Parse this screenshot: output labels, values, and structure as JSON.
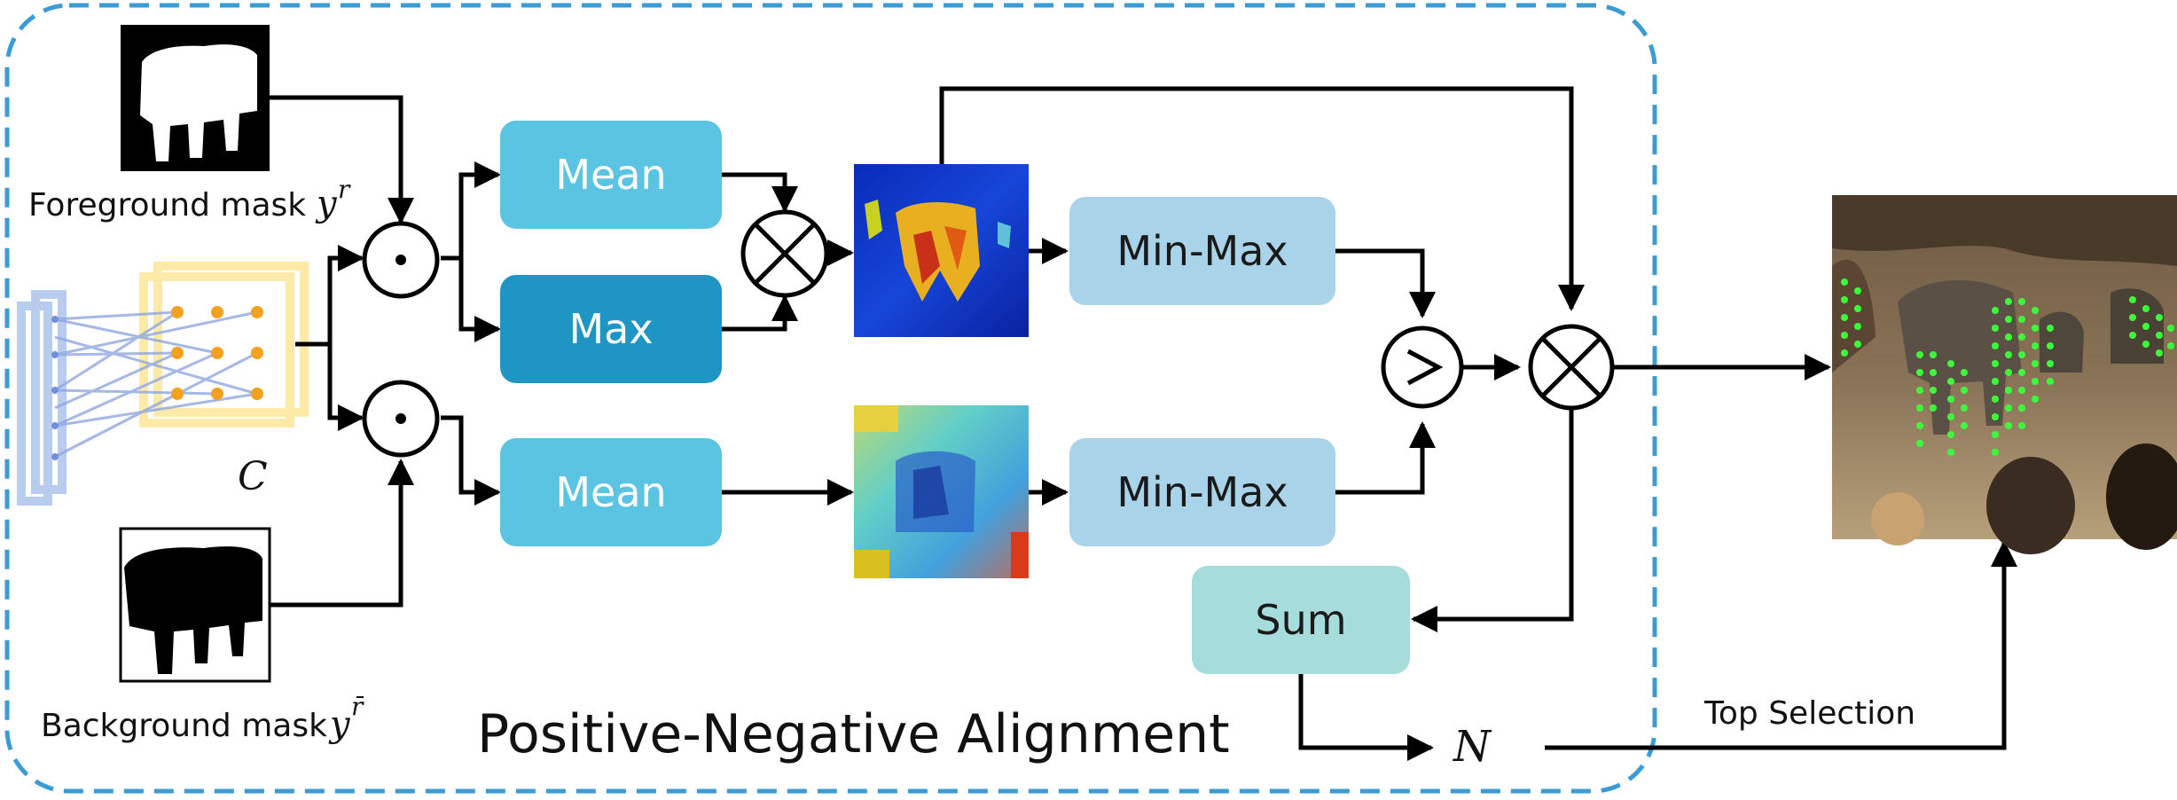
{
  "diagram": {
    "region_title": "Positive-Negative Alignment",
    "labels": {
      "foreground_mask": "Foreground mask",
      "foreground_symbol": "y",
      "foreground_sup": "r",
      "background_mask": "Background mask",
      "background_symbol": "y",
      "background_sup": "r̄",
      "feature_symbol": "C",
      "count_symbol": "N",
      "top_selection": "Top Selection"
    },
    "nodes": {
      "mean_top": "Mean",
      "max": "Max",
      "mean_bottom": "Mean",
      "minmax_top": "Min-Max",
      "minmax_bottom": "Min-Max",
      "sum": "Sum"
    },
    "operators": {
      "hadamard_top": "⊙",
      "hadamard_bottom": "⊙",
      "multiply_left": "⊗",
      "greater": ">",
      "multiply_right": "⊗"
    },
    "colors": {
      "frame": "#3a9bd5",
      "mean": "#5bc4e3",
      "max": "#1f95c4",
      "minmax": "#a8d3e8",
      "sum": "#a6dcdc",
      "feature_blue": "#9fb8e6",
      "feature_yellow": "#fde9a8",
      "feature_dot": "#f4a020"
    }
  }
}
